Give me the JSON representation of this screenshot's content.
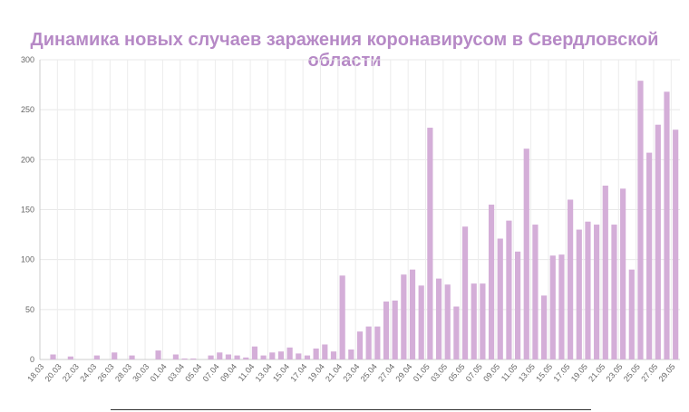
{
  "chart_data": {
    "type": "bar",
    "title": "Динамика новых случаев заражения коронавирусом в Свердловской области",
    "xlabel": "",
    "ylabel": "",
    "ylim": [
      0,
      300
    ],
    "yticks": [
      0,
      50,
      100,
      150,
      200,
      250,
      300
    ],
    "grid": true,
    "bar_color": "#d4aed8",
    "categories": [
      "18.03",
      "19.03",
      "20.03",
      "21.03",
      "22.03",
      "23.03",
      "24.03",
      "25.03",
      "26.03",
      "27.03",
      "28.03",
      "29.03",
      "30.03",
      "31.03",
      "01.04",
      "02.04",
      "03.04",
      "04.04",
      "05.04",
      "06.04",
      "07.04",
      "08.04",
      "09.04",
      "10.04",
      "11.04",
      "12.04",
      "13.04",
      "14.04",
      "15.04",
      "16.04",
      "17.04",
      "18.04",
      "19.04",
      "20.04",
      "21.04",
      "22.04",
      "23.04",
      "24.04",
      "25.04",
      "26.04",
      "27.04",
      "28.04",
      "29.04",
      "30.04",
      "01.05",
      "02.05",
      "03.05",
      "04.05",
      "05.05",
      "06.05",
      "07.05",
      "08.05",
      "09.05",
      "10.05",
      "11.05",
      "12.05",
      "13.05",
      "14.05",
      "15.05",
      "16.05",
      "17.05",
      "18.05",
      "19.05",
      "20.05",
      "21.05",
      "22.05",
      "23.05",
      "24.05",
      "25.05",
      "26.05",
      "27.05",
      "28.05",
      "29.05"
    ],
    "values": [
      0,
      5,
      0,
      3,
      0,
      0,
      4,
      0,
      7,
      0,
      4,
      0,
      0,
      9,
      0,
      5,
      1,
      1,
      0,
      4,
      7,
      5,
      4,
      2,
      13,
      4,
      7,
      8,
      12,
      6,
      4,
      11,
      15,
      8,
      84,
      10,
      28,
      33,
      33,
      58,
      59,
      85,
      90,
      74,
      232,
      81,
      75,
      53,
      133,
      76,
      76,
      155,
      121,
      139,
      108,
      211,
      135,
      64,
      104,
      105,
      160,
      130,
      138,
      135,
      174,
      135,
      171,
      90,
      279,
      207,
      235,
      268,
      230
    ]
  }
}
